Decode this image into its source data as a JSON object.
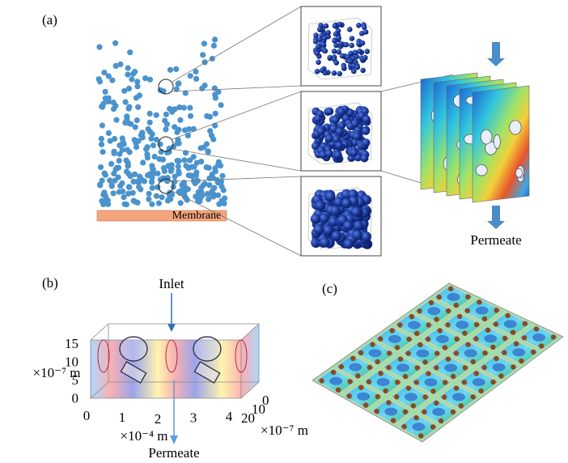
{
  "panels": [
    {
      "label": "(a)",
      "membrane": "Membrane",
      "outlet": "Permeate"
    },
    {
      "label": "(b)",
      "inlet": "Inlet",
      "outlet": "Permeate",
      "z_ticks": [
        15,
        10,
        5,
        0
      ],
      "z_unit": "×10⁻⁷ m",
      "x_ticks": [
        0,
        1,
        2,
        3,
        4
      ],
      "x_unit": "×10⁻⁴ m",
      "y_ticks": [
        20,
        10,
        0
      ],
      "y_unit": "×10⁻⁷ m"
    },
    {
      "label": "(c)"
    }
  ]
}
